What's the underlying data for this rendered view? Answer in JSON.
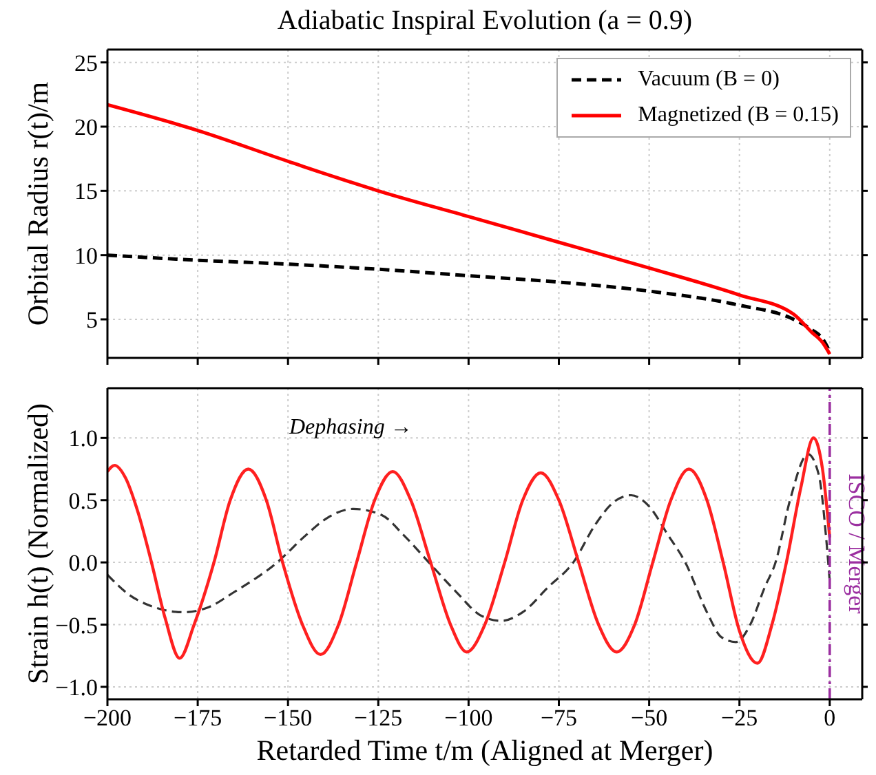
{
  "chart_data": [
    {
      "type": "line",
      "title": "Adiabatic Inspiral Evolution (a = 0.9)",
      "ylabel": "Orbital Radius r(t)/m",
      "xlim": [
        -200,
        9
      ],
      "xticks": [
        -200,
        -175,
        -150,
        -125,
        -100,
        -75,
        -50,
        -25,
        0
      ],
      "ylim": [
        2,
        26
      ],
      "yticks": [
        5,
        10,
        15,
        20,
        25
      ],
      "tick_labels": "y",
      "grid": true,
      "legend": "top right",
      "series": [
        {
          "name": "Vacuum (B = 0)",
          "color": "#000000",
          "line_style": "dashed",
          "x": [
            -200,
            -175,
            -150,
            -125,
            -100,
            -75,
            -50,
            -25,
            -10,
            -5,
            -2,
            0
          ],
          "values": [
            10.0,
            9.6,
            9.3,
            8.9,
            8.4,
            7.9,
            7.2,
            6.1,
            5.0,
            4.2,
            3.5,
            2.5
          ]
        },
        {
          "name": "Magnetized (B = 0.15)",
          "color": "#ff0000",
          "line_style": "solid",
          "x": [
            -200,
            -175,
            -150,
            -125,
            -100,
            -75,
            -50,
            -25,
            -10,
            -5,
            -2,
            0
          ],
          "values": [
            21.7,
            19.7,
            17.3,
            15.0,
            13.0,
            11.0,
            9.0,
            6.9,
            5.4,
            4.0,
            3.2,
            2.3
          ]
        }
      ]
    },
    {
      "type": "line",
      "xlabel": "Retarded Time t/m (Aligned at Merger)",
      "ylabel": "Strain h(t) (Normalized)",
      "xlim": [
        -200,
        9
      ],
      "xticks": [
        -200,
        -175,
        -150,
        -125,
        -100,
        -75,
        -50,
        -25,
        0
      ],
      "ylim": [
        -1.1,
        1.4
      ],
      "yticks": [
        {
          "value": -1,
          "label": "−1.0"
        },
        {
          "value": -0.5,
          "label": "−0.5"
        },
        {
          "value": 0,
          "label": "0.0"
        },
        {
          "value": 0.5,
          "label": "0.5"
        },
        {
          "value": 1,
          "label": "1.0"
        }
      ],
      "grid": true,
      "annotations": [
        "Dephasing →"
      ],
      "ref_lines": [
        {
          "axis": "x",
          "value": 0,
          "label": "ISCO / Merger",
          "color": "#9b2fa0",
          "line_style": "dashdot"
        }
      ],
      "series": [
        {
          "color": "#333333",
          "line_style": "dashed",
          "x": [
            -200,
            -194,
            -187,
            -179,
            -172,
            -165,
            -153,
            -145,
            -139,
            -132,
            -124,
            -118,
            -111,
            -103,
            -97,
            -91,
            -85,
            -78,
            -71,
            -65,
            -60,
            -55,
            -50,
            -45,
            -40,
            -34,
            -30,
            -26,
            -22,
            -18,
            -15,
            -11,
            -6,
            -3,
            -1,
            0
          ],
          "values": [
            -0.1,
            -0.26,
            -0.36,
            -0.4,
            -0.36,
            -0.24,
            0,
            0.22,
            0.36,
            0.43,
            0.38,
            0.22,
            0,
            -0.25,
            -0.42,
            -0.47,
            -0.4,
            -0.2,
            0,
            0.3,
            0.48,
            0.54,
            0.45,
            0.23,
            0,
            -0.4,
            -0.6,
            -0.64,
            -0.5,
            -0.2,
            0,
            0.5,
            0.87,
            0.7,
            0.2,
            -0.15
          ]
        },
        {
          "color": "#ff2020",
          "line_style": "solid",
          "x": [
            -200,
            -198,
            -195,
            -191.5,
            -187.8,
            -184,
            -180,
            -176,
            -170.5,
            -166,
            -161,
            -156,
            -151.5,
            -146,
            -141,
            -136,
            -131,
            -126,
            -121,
            -116,
            -110.5,
            -105,
            -100.5,
            -95.5,
            -90,
            -85,
            -80,
            -75,
            -69.5,
            -64,
            -59,
            -54,
            -49,
            -44,
            -39,
            -34,
            -29.5,
            -25,
            -20,
            -16,
            -12,
            -8,
            -4.5,
            -2,
            0
          ],
          "values": [
            0.73,
            0.78,
            0.68,
            0.4,
            0,
            -0.45,
            -0.77,
            -0.5,
            0,
            0.5,
            0.75,
            0.5,
            0,
            -0.5,
            -0.74,
            -0.5,
            0,
            0.5,
            0.73,
            0.5,
            0,
            -0.5,
            -0.72,
            -0.5,
            0,
            0.5,
            0.72,
            0.5,
            0,
            -0.5,
            -0.72,
            -0.5,
            0,
            0.5,
            0.75,
            0.5,
            0,
            -0.55,
            -0.81,
            -0.5,
            0,
            0.6,
            1.0,
            0.75,
            0.2
          ]
        }
      ]
    }
  ]
}
